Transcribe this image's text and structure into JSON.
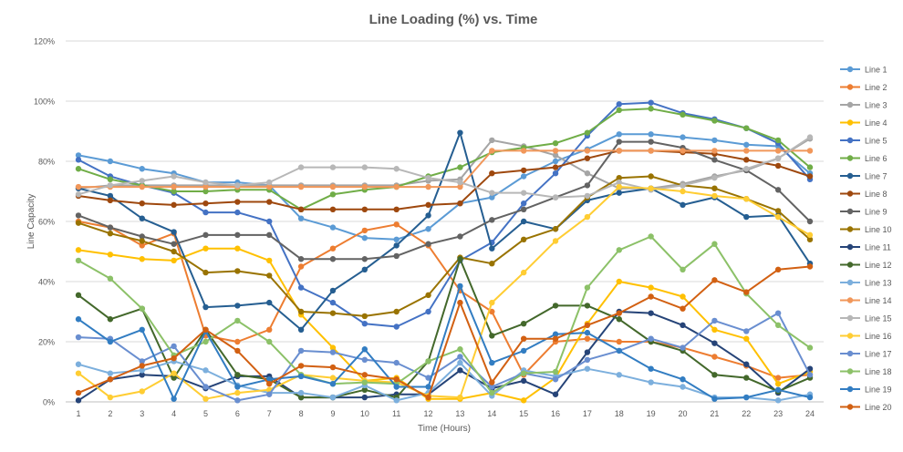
{
  "chart_data": {
    "type": "line",
    "title": "Line Loading (%) vs. Time",
    "xlabel": "Time (Hours)",
    "ylabel": "Line Capacity",
    "ylim": [
      0,
      120
    ],
    "yticks": [
      "0%",
      "20%",
      "40%",
      "60%",
      "80%",
      "100%",
      "120%"
    ],
    "ytick_values": [
      0,
      20,
      40,
      60,
      80,
      100,
      120
    ],
    "x": [
      1,
      2,
      3,
      4,
      5,
      6,
      7,
      8,
      9,
      10,
      11,
      12,
      13,
      14,
      15,
      16,
      17,
      18,
      19,
      20,
      21,
      22,
      23,
      24
    ],
    "grid": true,
    "legend": "right",
    "series": [
      {
        "name": "Line 1",
        "color": "#5B9BD5",
        "values": [
          82,
          80,
          77.5,
          76,
          73,
          73,
          72,
          61,
          58,
          54.5,
          54,
          57.5,
          66,
          68,
          75,
          80,
          84,
          89,
          89,
          88,
          87,
          85.5,
          85,
          76
        ]
      },
      {
        "name": "Line 2",
        "color": "#ED7D31",
        "values": [
          60,
          58,
          52,
          56,
          22,
          20,
          24,
          45,
          51,
          57,
          59,
          52,
          37,
          30,
          9,
          20,
          21,
          20,
          20,
          18,
          15,
          12,
          8,
          9
        ]
      },
      {
        "name": "Line 3",
        "color": "#A5A5A5",
        "values": [
          71,
          72,
          72,
          72,
          72,
          72,
          72,
          72,
          72,
          72,
          72,
          73.5,
          74,
          87,
          85,
          82,
          76,
          71,
          71,
          72.5,
          75,
          77,
          81,
          87.5
        ]
      },
      {
        "name": "Line 4",
        "color": "#FFC000",
        "values": [
          50.5,
          49,
          47.5,
          47,
          51,
          51,
          47,
          29,
          18,
          7,
          8,
          1,
          1,
          3,
          0.5,
          8,
          26,
          40,
          38,
          35,
          24,
          21,
          6,
          10
        ]
      },
      {
        "name": "Line 5",
        "color": "#4472C4",
        "values": [
          80.5,
          75,
          72,
          69.5,
          63,
          63,
          60,
          38,
          33,
          26,
          25,
          30,
          47,
          53,
          66,
          76,
          88.5,
          99,
          99.5,
          96,
          94,
          91,
          86,
          74
        ]
      },
      {
        "name": "Line 6",
        "color": "#70AD47",
        "values": [
          77.5,
          74,
          72,
          70,
          70,
          70.5,
          70.5,
          64,
          69,
          70.5,
          71.5,
          75,
          78,
          83,
          84.5,
          86,
          89.5,
          97,
          97.5,
          95.5,
          93.5,
          91,
          87,
          78
        ]
      },
      {
        "name": "Line 7",
        "color": "#255E91",
        "values": [
          71,
          68.5,
          61,
          56.5,
          31.5,
          32,
          33,
          24,
          37,
          44,
          52,
          62,
          89.5,
          51,
          60,
          57.5,
          67,
          69.5,
          71,
          65.5,
          68,
          61.5,
          62,
          46
        ]
      },
      {
        "name": "Line 8",
        "color": "#9E480E",
        "values": [
          68.5,
          67,
          66,
          65.5,
          66,
          66.5,
          66.5,
          64,
          64,
          64,
          64,
          65.5,
          66,
          76,
          77,
          78,
          81,
          83.5,
          83.5,
          83,
          82.5,
          80.5,
          78.5,
          75
        ]
      },
      {
        "name": "Line 9",
        "color": "#636363",
        "values": [
          62,
          58,
          55,
          52.5,
          55.5,
          55.5,
          55.5,
          47.5,
          47.5,
          47.5,
          48.5,
          52.5,
          55,
          60.5,
          64,
          68,
          72,
          86.5,
          86.5,
          84.5,
          80.5,
          77,
          70.5,
          60
        ]
      },
      {
        "name": "Line 10",
        "color": "#997300",
        "values": [
          59.5,
          56,
          53.5,
          50,
          43,
          43.5,
          42,
          30,
          29.5,
          28.5,
          30,
          35.5,
          48,
          46,
          54,
          57.5,
          68,
          74.5,
          75,
          72,
          71,
          67.5,
          63.5,
          54
        ]
      },
      {
        "name": "Line 11",
        "color": "#264478",
        "values": [
          0.5,
          7.5,
          9,
          8.5,
          4.5,
          8.5,
          8.5,
          1.5,
          1.5,
          1.5,
          2.5,
          2.5,
          10.5,
          4.5,
          7,
          2.5,
          16.5,
          30,
          29.5,
          25.5,
          19.5,
          12.5,
          3,
          11
        ]
      },
      {
        "name": "Line 12",
        "color": "#43682B",
        "values": [
          35.5,
          27.5,
          31,
          8,
          24,
          9,
          7.5,
          1.5,
          1.5,
          4,
          1.5,
          13.5,
          47.5,
          22,
          26,
          32,
          32,
          27.5,
          20,
          17,
          9,
          8,
          3.5,
          8
        ]
      },
      {
        "name": "Line 13",
        "color": "#7CAFDD",
        "values": [
          12.5,
          9.5,
          10.5,
          13.5,
          10.5,
          5.5,
          3,
          3,
          1.5,
          5.5,
          0.5,
          3,
          13,
          2,
          10.5,
          8.5,
          11,
          9,
          6.5,
          5,
          1.5,
          1.5,
          0.5,
          2.5
        ]
      },
      {
        "name": "Line 14",
        "color": "#F1975A",
        "values": [
          71.5,
          71.5,
          71.5,
          71.5,
          71.5,
          71.5,
          71.5,
          71.5,
          71.5,
          71.5,
          71.5,
          71.5,
          71.5,
          83.5,
          83.5,
          83.5,
          83.5,
          83.5,
          83.5,
          83.5,
          83.5,
          83.5,
          83.5,
          83.5
        ]
      },
      {
        "name": "Line 15",
        "color": "#B7B7B7",
        "values": [
          69,
          72,
          73.5,
          75,
          73,
          72,
          73,
          78,
          78,
          78,
          77.5,
          74.5,
          73,
          69.5,
          69.5,
          68,
          68.5,
          73,
          70.5,
          72,
          74.5,
          77.5,
          81,
          88
        ]
      },
      {
        "name": "Line 16",
        "color": "#FFCD33",
        "values": [
          9.5,
          1.5,
          3.5,
          9.5,
          1,
          3,
          4,
          9,
          8,
          7,
          6.5,
          2,
          1.5,
          33,
          43,
          53.5,
          61.5,
          71.5,
          71,
          70,
          68.5,
          67.5,
          61.5,
          55.5
        ]
      },
      {
        "name": "Line 17",
        "color": "#698ED0",
        "values": [
          21.5,
          21,
          13.5,
          18.5,
          5,
          0.5,
          2.5,
          17,
          16.5,
          14,
          13,
          8,
          15,
          5,
          9.5,
          7.5,
          14,
          17,
          21,
          18,
          27,
          23.5,
          29.5,
          9
        ]
      },
      {
        "name": "Line 18",
        "color": "#8CC168",
        "values": [
          47,
          41,
          31,
          15.5,
          20,
          27,
          20,
          9,
          6,
          6.5,
          6,
          13.5,
          17.5,
          3,
          9.5,
          10,
          38,
          50.5,
          55,
          44,
          52.5,
          36,
          25.5,
          18
        ]
      },
      {
        "name": "Line 19",
        "color": "#327DC2",
        "values": [
          27.5,
          20,
          24,
          1,
          23.5,
          5,
          7.5,
          8.5,
          6,
          17.5,
          5,
          5,
          38.5,
          13,
          17,
          22.5,
          23,
          17,
          11,
          7.5,
          1,
          1.5,
          4,
          1.5
        ]
      },
      {
        "name": "Line 20",
        "color": "#D26012",
        "values": [
          3,
          7.5,
          12,
          14.5,
          24,
          17,
          6,
          12,
          11.5,
          9,
          7.5,
          1.5,
          33,
          6.5,
          21,
          21,
          25.5,
          29.5,
          35,
          31,
          40.5,
          36.5,
          44,
          45
        ]
      }
    ]
  }
}
